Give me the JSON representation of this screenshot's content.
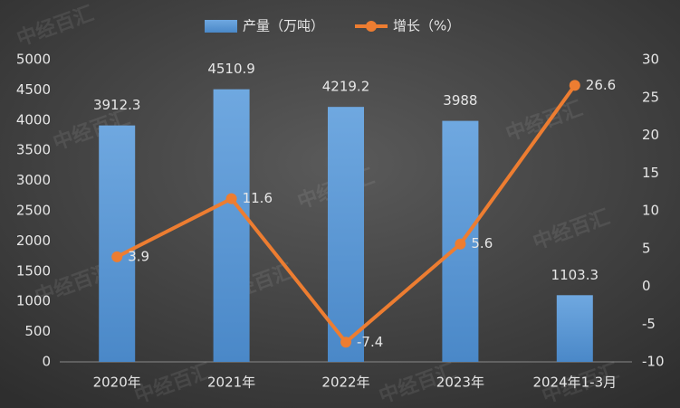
{
  "chart_data": {
    "type": "combo",
    "watermark": "中经百汇",
    "categories": [
      "2020年",
      "2021年",
      "2022年",
      "2023年",
      "2024年1-3月"
    ],
    "series": [
      {
        "name": "产量（万吨）",
        "type": "bar",
        "color": "#5b9bd5",
        "values": [
          3912.3,
          4510.9,
          4219.2,
          3988,
          1103.3
        ]
      },
      {
        "name": "增长（%）",
        "type": "line",
        "axis": "y2",
        "color": "#ed7d31",
        "values": [
          3.9,
          11.6,
          -7.4,
          5.6,
          26.6
        ]
      }
    ],
    "ylim": [
      0,
      5000
    ],
    "yticks": [
      0,
      500,
      1000,
      1500,
      2000,
      2500,
      3000,
      3500,
      4000,
      4500,
      5000
    ],
    "y2lim": [
      -10,
      30
    ],
    "y2ticks": [
      -10,
      -5,
      0,
      5,
      10,
      15,
      20,
      25,
      30
    ],
    "grid": false,
    "legend": "top"
  }
}
